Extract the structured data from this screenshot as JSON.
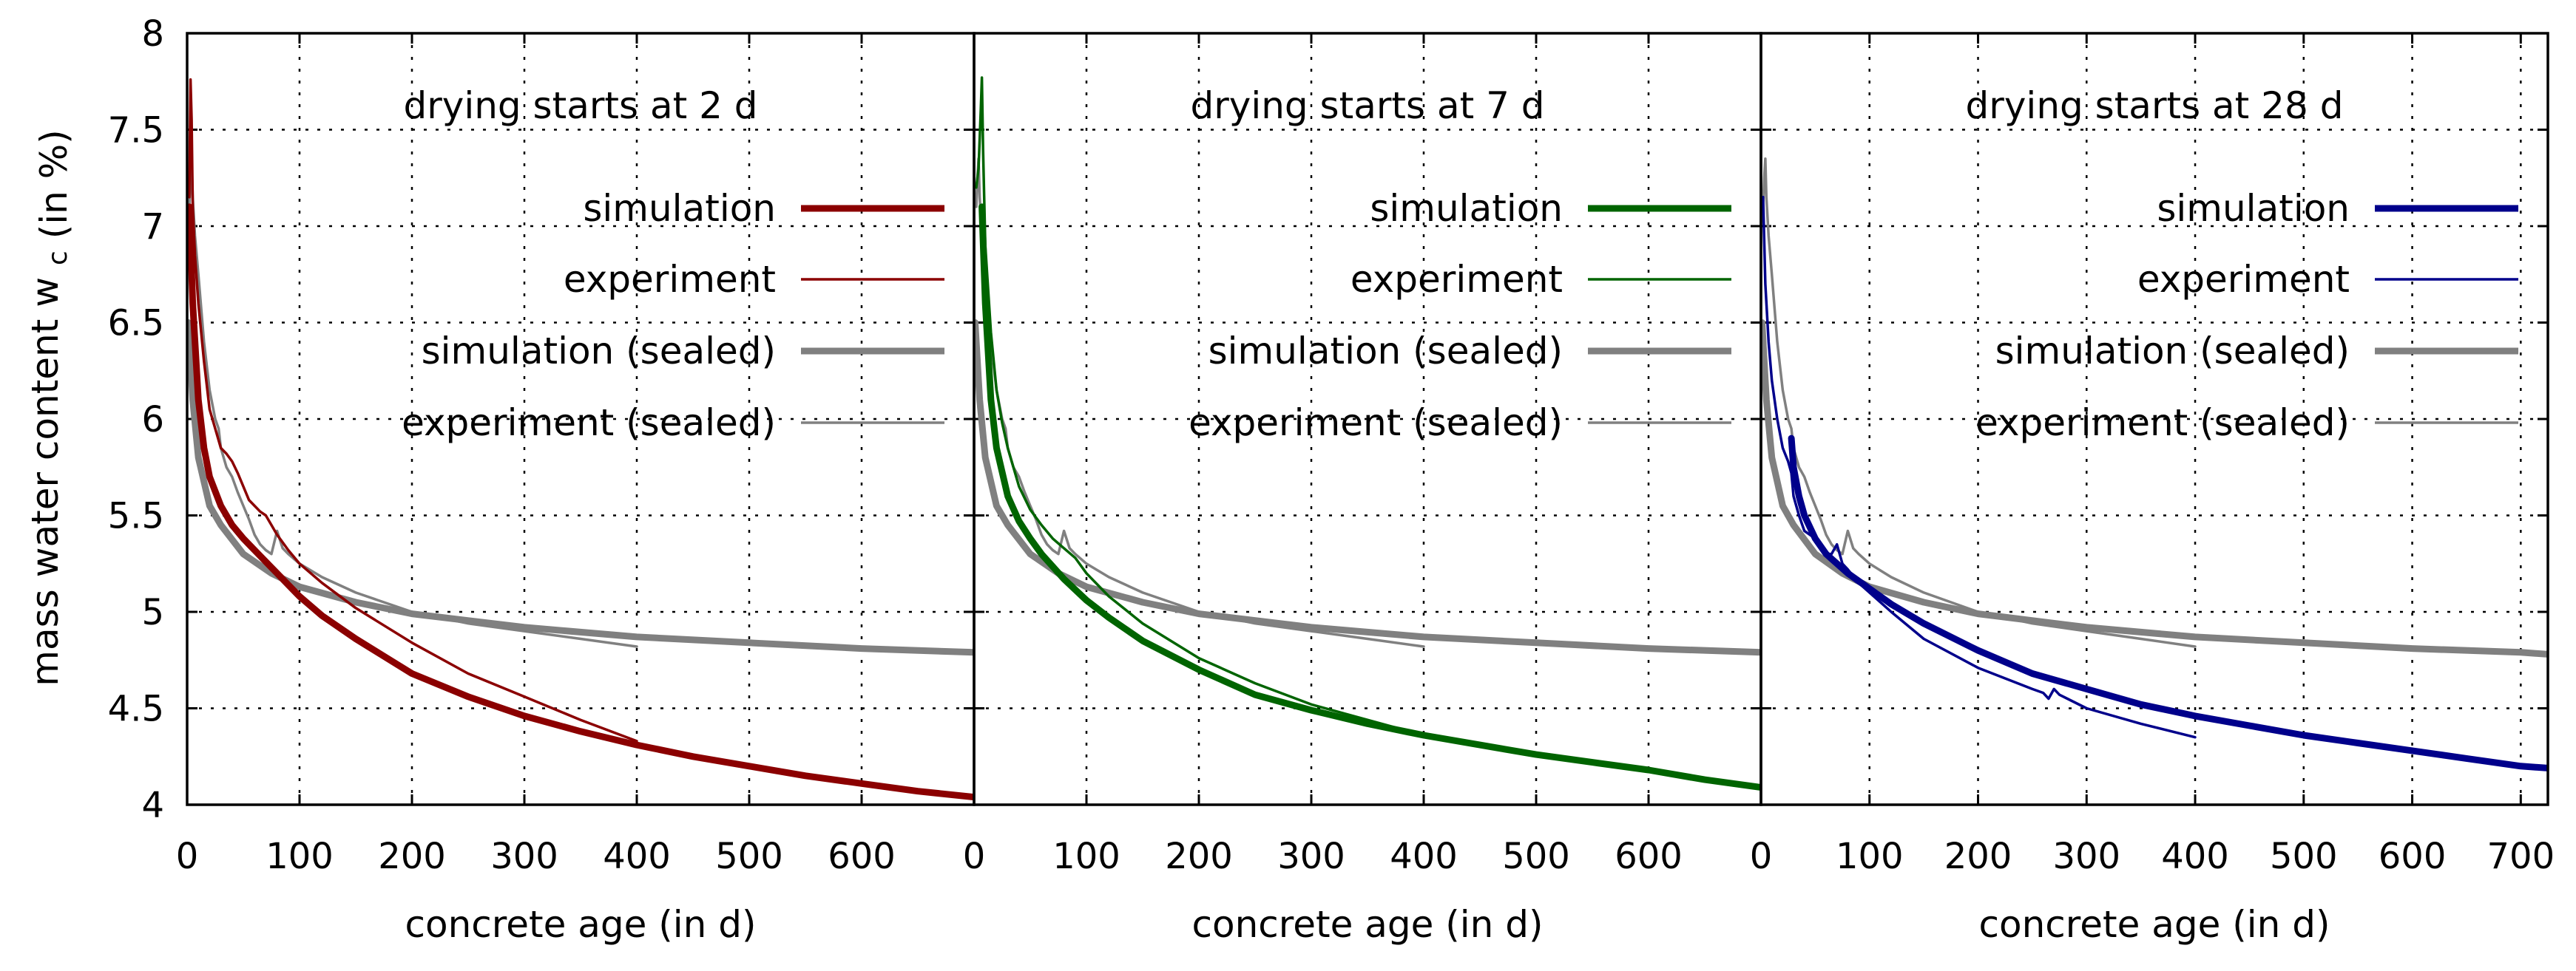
{
  "chart_data": {
    "type": "line",
    "ylabel": "mass water content",
    "ylabel_symbol": "w",
    "ylabel_subscript": "c",
    "ylabel_unit": "(in %)",
    "ylim": [
      4,
      8
    ],
    "yticks": [
      4,
      4.5,
      5,
      5.5,
      6,
      6.5,
      7,
      7.5,
      8
    ],
    "ytick_labels": [
      "4",
      "4.5",
      "5",
      "5.5",
      "6",
      "6.5",
      "7",
      "7.5",
      "8"
    ],
    "grid": true,
    "colors": {
      "sealed": "#808080",
      "axis": "#000000",
      "grid": "#000000"
    },
    "legend_labels": [
      "simulation",
      "experiment",
      "simulation (sealed)",
      "experiment (sealed)"
    ],
    "panels": [
      {
        "title": "drying starts at 2 d",
        "xlabel": "concrete age (in d)",
        "xlim": [
          0,
          700
        ],
        "xticks": [
          0,
          100,
          200,
          300,
          400,
          500,
          600
        ],
        "xtick_labels": [
          "0",
          "100",
          "200",
          "300",
          "400",
          "500",
          "600"
        ],
        "color": "#8b0000",
        "series": [
          {
            "name": "simulation",
            "x": [
              2,
              5,
              10,
              15,
              20,
              30,
              40,
              50,
              60,
              80,
              100,
              120,
              150,
              200,
              250,
              300,
              350,
              400,
              450,
              500,
              550,
              600,
              650,
              700
            ],
            "y": [
              7.1,
              6.6,
              6.1,
              5.85,
              5.7,
              5.55,
              5.45,
              5.38,
              5.32,
              5.2,
              5.08,
              4.98,
              4.86,
              4.68,
              4.56,
              4.46,
              4.38,
              4.31,
              4.25,
              4.2,
              4.15,
              4.11,
              4.07,
              4.04
            ]
          },
          {
            "name": "experiment",
            "x": [
              2,
              3,
              4,
              5,
              7,
              10,
              15,
              20,
              25,
              30,
              35,
              40,
              45,
              50,
              55,
              60,
              65,
              70,
              75,
              80,
              90,
              100,
              120,
              150,
              200,
              250,
              300,
              350,
              400
            ],
            "y": [
              7.15,
              7.76,
              7.55,
              7.1,
              6.85,
              6.6,
              6.3,
              6.05,
              5.95,
              5.85,
              5.82,
              5.78,
              5.72,
              5.65,
              5.58,
              5.55,
              5.52,
              5.5,
              5.45,
              5.4,
              5.32,
              5.25,
              5.15,
              5.02,
              4.84,
              4.68,
              4.56,
              4.44,
              4.33
            ]
          },
          {
            "name": "simulation (sealed)",
            "x": [
              1,
              2,
              5,
              10,
              20,
              30,
              50,
              75,
              100,
              150,
              200,
              300,
              400,
              500,
              600,
              700
            ],
            "y": [
              6.5,
              6.4,
              6.1,
              5.8,
              5.55,
              5.45,
              5.3,
              5.2,
              5.13,
              5.05,
              4.99,
              4.92,
              4.87,
              4.84,
              4.81,
              4.79
            ]
          },
          {
            "name": "experiment (sealed)",
            "x": [
              2,
              3,
              4,
              5,
              7,
              10,
              15,
              20,
              25,
              28,
              30,
              35,
              40,
              45,
              50,
              55,
              60,
              65,
              70,
              75,
              80,
              85,
              90,
              100,
              120,
              150,
              200,
              250,
              300,
              350,
              400
            ],
            "y": [
              7.1,
              7.25,
              7.35,
              7.15,
              6.95,
              6.75,
              6.4,
              6.15,
              6.0,
              5.95,
              5.85,
              5.75,
              5.7,
              5.62,
              5.55,
              5.48,
              5.4,
              5.35,
              5.32,
              5.3,
              5.42,
              5.33,
              5.3,
              5.25,
              5.18,
              5.1,
              5.0,
              4.94,
              4.9,
              4.86,
              4.82
            ]
          }
        ]
      },
      {
        "title": "drying starts at 7 d",
        "xlabel": "concrete age (in d)",
        "xlim": [
          0,
          700
        ],
        "xticks": [
          0,
          100,
          200,
          300,
          400,
          500,
          600
        ],
        "xtick_labels": [
          "0",
          "100",
          "200",
          "300",
          "400",
          "500",
          "600"
        ],
        "color": "#006400",
        "series": [
          {
            "name": "simulation",
            "x": [
              7,
              10,
              15,
              20,
              30,
              40,
              50,
              60,
              80,
              100,
              120,
              150,
              200,
              250,
              300,
              350,
              400,
              450,
              500,
              550,
              600,
              650,
              700
            ],
            "y": [
              7.1,
              6.6,
              6.1,
              5.85,
              5.6,
              5.47,
              5.38,
              5.3,
              5.17,
              5.06,
              4.97,
              4.85,
              4.7,
              4.57,
              4.49,
              4.42,
              4.36,
              4.31,
              4.26,
              4.22,
              4.18,
              4.13,
              4.09
            ]
          },
          {
            "name": "experiment",
            "x": [
              2,
              4,
              6,
              7,
              8,
              10,
              15,
              20,
              25,
              30,
              40,
              50,
              60,
              70,
              80,
              90,
              100,
              120,
              150,
              200,
              250,
              300,
              350,
              400
            ],
            "y": [
              7.2,
              7.3,
              7.6,
              7.77,
              7.4,
              6.9,
              6.45,
              6.15,
              5.98,
              5.85,
              5.65,
              5.53,
              5.45,
              5.38,
              5.33,
              5.28,
              5.2,
              5.08,
              4.94,
              4.76,
              4.63,
              4.52,
              4.44,
              4.36
            ]
          },
          {
            "name": "simulation (sealed)",
            "x": [
              1,
              2,
              5,
              10,
              20,
              30,
              50,
              75,
              100,
              150,
              200,
              300,
              400,
              500,
              600,
              700
            ],
            "y": [
              6.5,
              6.4,
              6.1,
              5.8,
              5.55,
              5.45,
              5.3,
              5.2,
              5.13,
              5.05,
              4.99,
              4.92,
              4.87,
              4.84,
              4.81,
              4.79
            ]
          },
          {
            "name": "experiment (sealed)",
            "x": [
              2,
              3,
              4,
              5,
              7,
              10,
              15,
              20,
              25,
              28,
              30,
              35,
              40,
              45,
              50,
              55,
              60,
              65,
              70,
              75,
              80,
              85,
              90,
              100,
              120,
              150,
              200,
              250,
              300,
              350,
              400
            ],
            "y": [
              7.1,
              7.25,
              7.35,
              7.15,
              6.95,
              6.75,
              6.4,
              6.15,
              6.0,
              5.95,
              5.85,
              5.75,
              5.7,
              5.62,
              5.55,
              5.48,
              5.4,
              5.35,
              5.32,
              5.3,
              5.42,
              5.33,
              5.3,
              5.25,
              5.18,
              5.1,
              5.0,
              4.94,
              4.9,
              4.86,
              4.82
            ]
          }
        ]
      },
      {
        "title": "drying starts at 28 d",
        "xlabel": "concrete age (in d)",
        "xlim": [
          0,
          725
        ],
        "xticks": [
          0,
          100,
          200,
          300,
          400,
          500,
          600,
          700
        ],
        "xtick_labels": [
          "0",
          "100",
          "200",
          "300",
          "400",
          "500",
          "600",
          "700"
        ],
        "color": "#00008b",
        "series": [
          {
            "name": "simulation",
            "x": [
              28,
              30,
              35,
              40,
              50,
              60,
              80,
              100,
              120,
              150,
              200,
              250,
              300,
              350,
              400,
              450,
              500,
              550,
              600,
              650,
              700,
              725
            ],
            "y": [
              5.9,
              5.75,
              5.6,
              5.5,
              5.38,
              5.3,
              5.2,
              5.12,
              5.04,
              4.94,
              4.8,
              4.68,
              4.6,
              4.52,
              4.46,
              4.41,
              4.36,
              4.32,
              4.28,
              4.24,
              4.2,
              4.19
            ]
          },
          {
            "name": "experiment",
            "x": [
              2,
              4,
              7,
              10,
              15,
              20,
              25,
              28,
              30,
              35,
              40,
              45,
              50,
              55,
              60,
              65,
              70,
              75,
              80,
              90,
              100,
              120,
              150,
              200,
              250,
              260,
              265,
              270,
              275,
              300,
              350,
              400
            ],
            "y": [
              7.15,
              6.7,
              6.4,
              6.2,
              6.0,
              5.85,
              5.78,
              5.72,
              5.6,
              5.5,
              5.42,
              5.4,
              5.38,
              5.35,
              5.3,
              5.3,
              5.35,
              5.25,
              5.22,
              5.15,
              5.1,
              5.0,
              4.86,
              4.71,
              4.6,
              4.58,
              4.55,
              4.6,
              4.57,
              4.5,
              4.42,
              4.35
            ]
          },
          {
            "name": "simulation (sealed)",
            "x": [
              1,
              2,
              5,
              10,
              20,
              30,
              50,
              75,
              100,
              150,
              200,
              300,
              400,
              500,
              600,
              700,
              725
            ],
            "y": [
              6.5,
              6.4,
              6.1,
              5.8,
              5.55,
              5.45,
              5.3,
              5.2,
              5.13,
              5.05,
              4.99,
              4.92,
              4.87,
              4.84,
              4.81,
              4.79,
              4.78
            ]
          },
          {
            "name": "experiment (sealed)",
            "x": [
              2,
              3,
              4,
              5,
              7,
              10,
              15,
              20,
              25,
              28,
              30,
              35,
              40,
              45,
              50,
              55,
              60,
              65,
              70,
              75,
              80,
              85,
              90,
              100,
              120,
              150,
              200,
              250,
              300,
              350,
              400
            ],
            "y": [
              7.1,
              7.25,
              7.35,
              7.15,
              6.95,
              6.75,
              6.4,
              6.15,
              6.0,
              5.95,
              5.85,
              5.75,
              5.7,
              5.62,
              5.55,
              5.48,
              5.4,
              5.35,
              5.32,
              5.3,
              5.42,
              5.33,
              5.3,
              5.25,
              5.18,
              5.1,
              5.0,
              4.94,
              4.9,
              4.86,
              4.82
            ]
          }
        ]
      }
    ]
  }
}
